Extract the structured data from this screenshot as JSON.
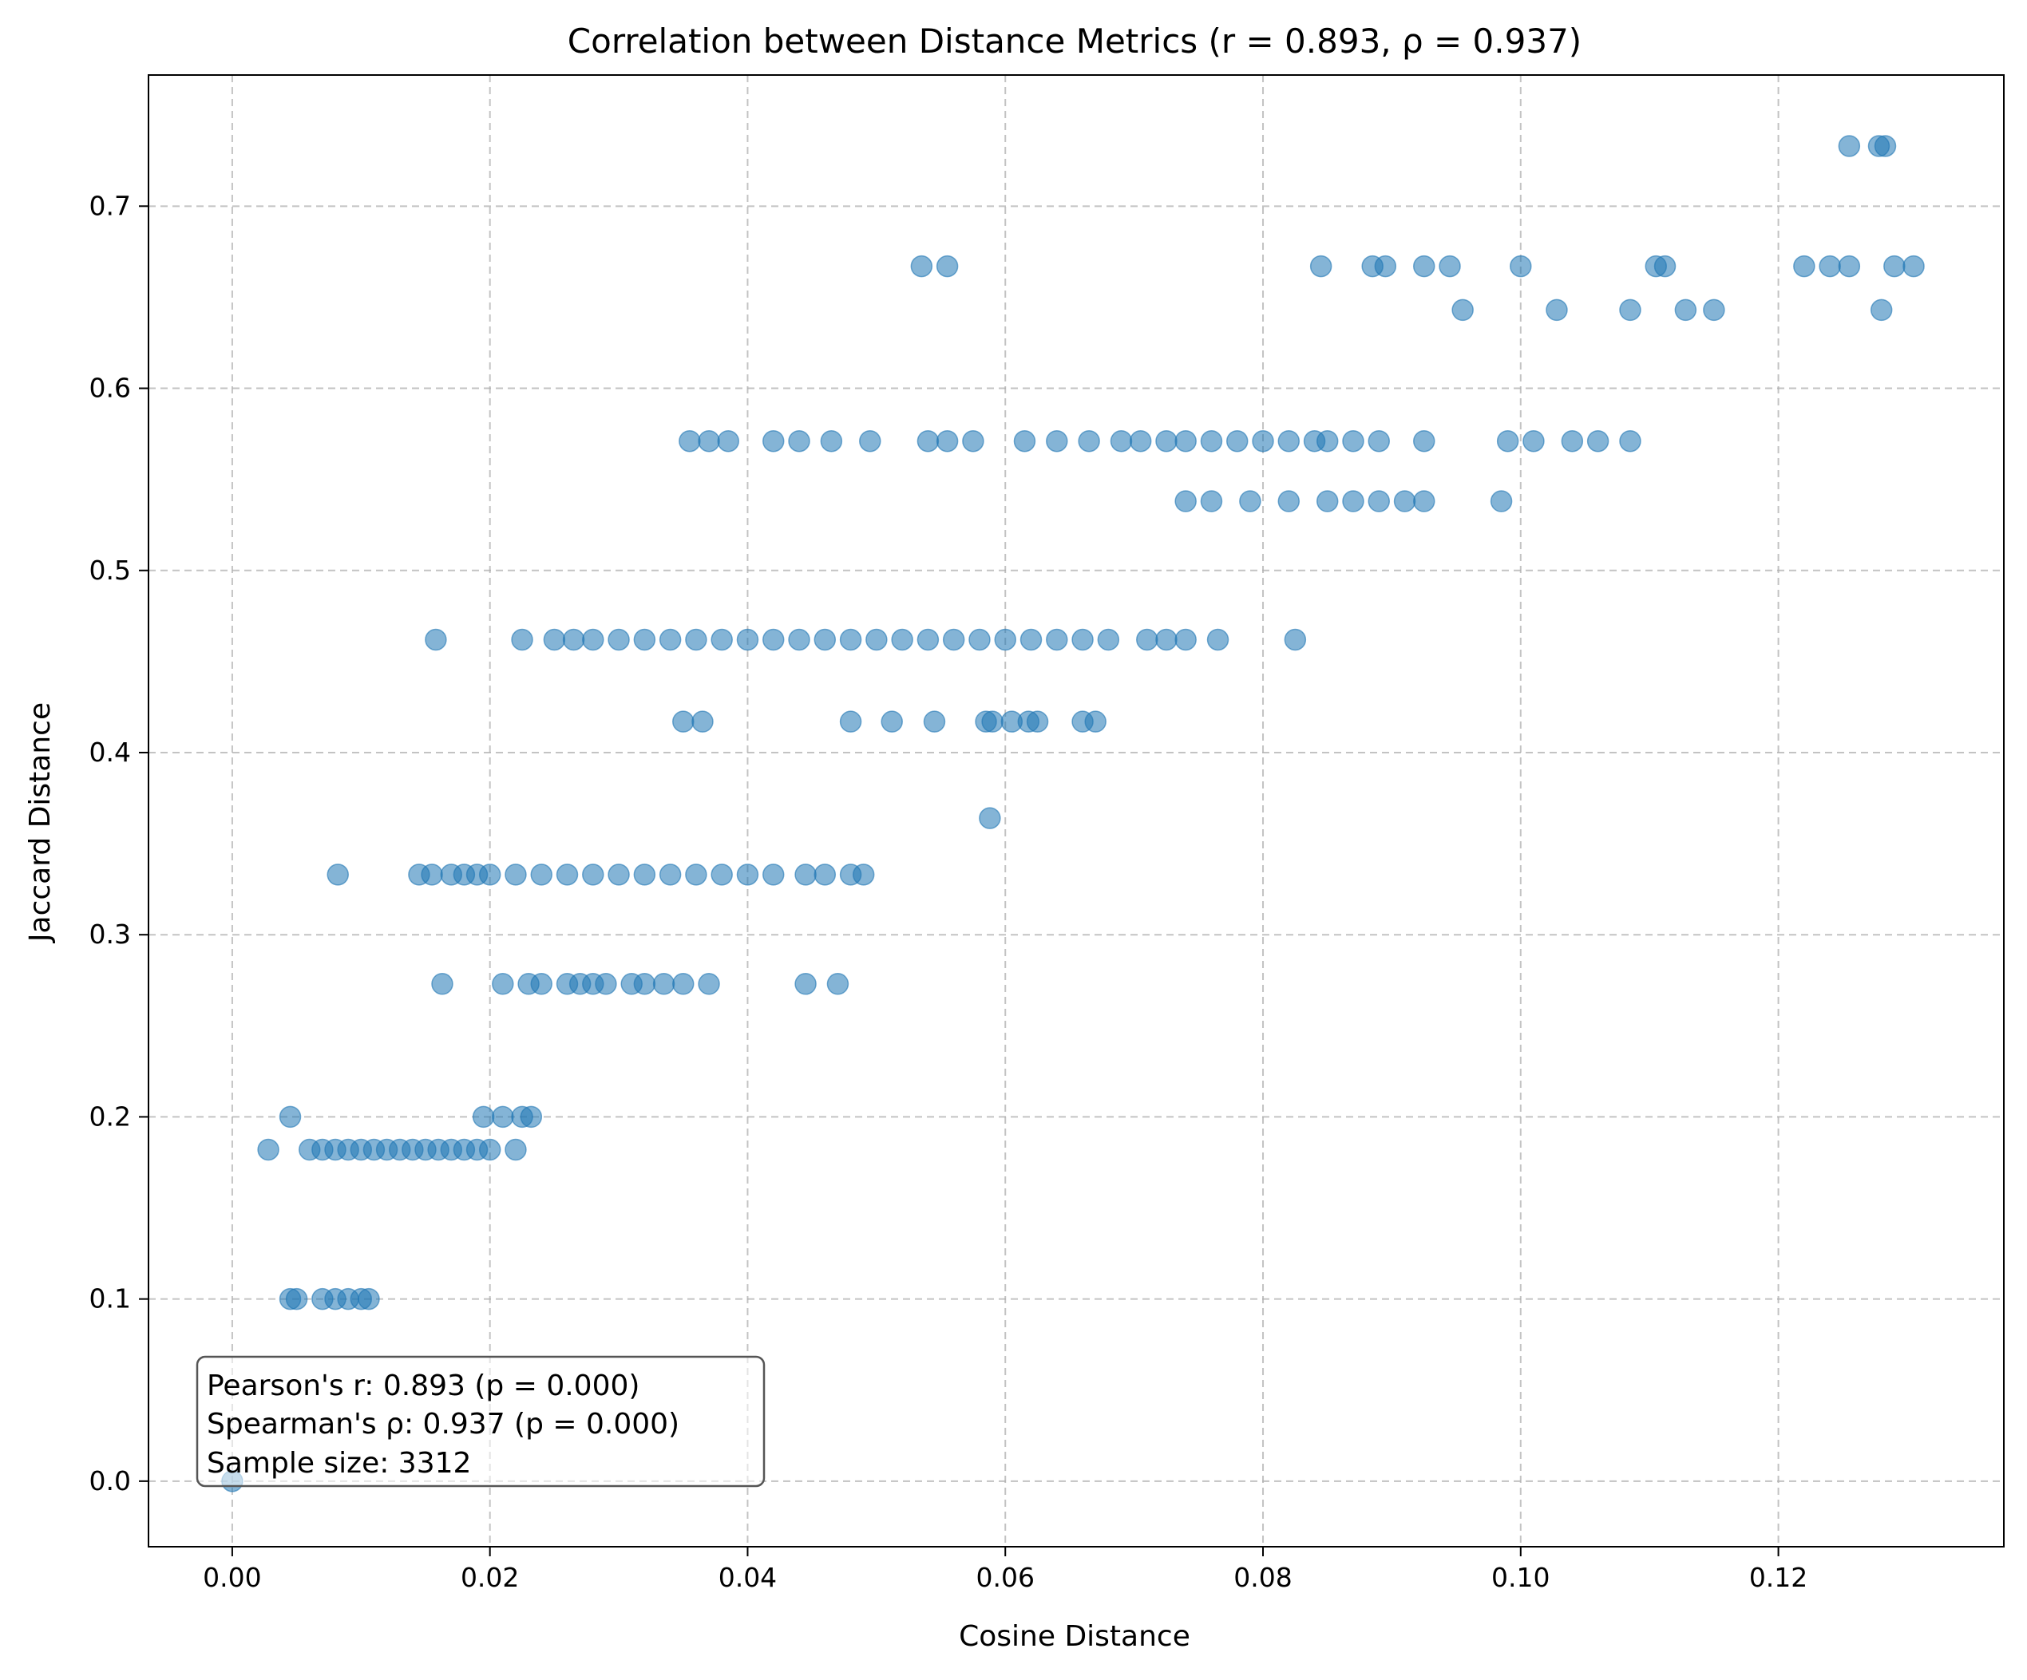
{
  "chart_data": {
    "type": "scatter",
    "title": "Correlation between Distance Metrics (r = 0.893, ρ = 0.937)",
    "xlabel": "Cosine Distance",
    "ylabel": "Jaccard Distance",
    "xlim": [
      -0.0065,
      0.1375
    ],
    "ylim": [
      -0.036,
      0.772
    ],
    "x_ticks": [
      0.0,
      0.02,
      0.04,
      0.06,
      0.08,
      0.1,
      0.12
    ],
    "x_tick_labels": [
      "0.00",
      "0.02",
      "0.04",
      "0.06",
      "0.08",
      "0.10",
      "0.12"
    ],
    "y_ticks": [
      0.0,
      0.1,
      0.2,
      0.3,
      0.4,
      0.5,
      0.6,
      0.7
    ],
    "y_tick_labels": [
      "0.0",
      "0.1",
      "0.2",
      "0.3",
      "0.4",
      "0.5",
      "0.6",
      "0.7"
    ],
    "grid": true,
    "marker_color": "#1f77b4",
    "marker_alpha": 0.55,
    "stats_box": {
      "placement": "bottom-left",
      "lines": [
        "Pearson's r: 0.893 (p = 0.000)",
        "Spearman's ρ: 0.937 (p = 0.000)",
        "Sample size: 3312"
      ]
    },
    "series": [
      {
        "x": [
          0.0,
          0.0045,
          0.005,
          0.007,
          0.008,
          0.009,
          0.01,
          0.0106,
          0.0028,
          0.006,
          0.007,
          0.008,
          0.009,
          0.01,
          0.011,
          0.012,
          0.013,
          0.014,
          0.015,
          0.016,
          0.017,
          0.018,
          0.019,
          0.02,
          0.022,
          0.0045,
          0.0195,
          0.021,
          0.0225,
          0.0232,
          0.0163,
          0.021,
          0.023,
          0.024,
          0.026,
          0.027,
          0.028,
          0.029,
          0.031,
          0.032,
          0.0335,
          0.035,
          0.037,
          0.0445,
          0.047,
          0.0082,
          0.0145,
          0.0155,
          0.017,
          0.018,
          0.019,
          0.02,
          0.022,
          0.024,
          0.026,
          0.028,
          0.03,
          0.032,
          0.034,
          0.036,
          0.038,
          0.04,
          0.042,
          0.0445,
          0.046,
          0.048,
          0.049,
          0.0588,
          0.035,
          0.0365,
          0.048,
          0.0512,
          0.0545,
          0.0585,
          0.059,
          0.0605,
          0.0618,
          0.0625,
          0.066,
          0.067,
          0.0158,
          0.0225,
          0.025,
          0.0265,
          0.028,
          0.03,
          0.032,
          0.034,
          0.036,
          0.038,
          0.04,
          0.042,
          0.044,
          0.046,
          0.048,
          0.05,
          0.052,
          0.054,
          0.056,
          0.058,
          0.06,
          0.062,
          0.064,
          0.066,
          0.068,
          0.071,
          0.0725,
          0.074,
          0.0765,
          0.0825,
          0.074,
          0.076,
          0.079,
          0.082,
          0.085,
          0.087,
          0.089,
          0.091,
          0.0925,
          0.0985,
          0.0355,
          0.037,
          0.0385,
          0.042,
          0.044,
          0.0465,
          0.0495,
          0.054,
          0.0555,
          0.0575,
          0.0615,
          0.064,
          0.0665,
          0.069,
          0.0705,
          0.0725,
          0.074,
          0.076,
          0.078,
          0.08,
          0.082,
          0.084,
          0.085,
          0.087,
          0.089,
          0.0925,
          0.099,
          0.101,
          0.104,
          0.106,
          0.1085,
          0.0535,
          0.0555,
          0.0845,
          0.0885,
          0.0895,
          0.0925,
          0.0945,
          0.1,
          0.1105,
          0.1112,
          0.122,
          0.124,
          0.1255,
          0.129,
          0.1305,
          0.0955,
          0.1028,
          0.1085,
          0.1128,
          0.115,
          0.128,
          0.1255,
          0.1278,
          0.1283
        ],
        "y": [
          0.0,
          0.1,
          0.1,
          0.1,
          0.1,
          0.1,
          0.1,
          0.1,
          0.182,
          0.182,
          0.182,
          0.182,
          0.182,
          0.182,
          0.182,
          0.182,
          0.182,
          0.182,
          0.182,
          0.182,
          0.182,
          0.182,
          0.182,
          0.182,
          0.182,
          0.2,
          0.2,
          0.2,
          0.2,
          0.2,
          0.273,
          0.273,
          0.273,
          0.273,
          0.273,
          0.273,
          0.273,
          0.273,
          0.273,
          0.273,
          0.273,
          0.273,
          0.273,
          0.273,
          0.273,
          0.333,
          0.333,
          0.333,
          0.333,
          0.333,
          0.333,
          0.333,
          0.333,
          0.333,
          0.333,
          0.333,
          0.333,
          0.333,
          0.333,
          0.333,
          0.333,
          0.333,
          0.333,
          0.333,
          0.333,
          0.333,
          0.333,
          0.364,
          0.417,
          0.417,
          0.417,
          0.417,
          0.417,
          0.417,
          0.417,
          0.417,
          0.417,
          0.417,
          0.417,
          0.417,
          0.462,
          0.462,
          0.462,
          0.462,
          0.462,
          0.462,
          0.462,
          0.462,
          0.462,
          0.462,
          0.462,
          0.462,
          0.462,
          0.462,
          0.462,
          0.462,
          0.462,
          0.462,
          0.462,
          0.462,
          0.462,
          0.462,
          0.462,
          0.462,
          0.462,
          0.462,
          0.462,
          0.462,
          0.462,
          0.462,
          0.538,
          0.538,
          0.538,
          0.538,
          0.538,
          0.538,
          0.538,
          0.538,
          0.538,
          0.538,
          0.571,
          0.571,
          0.571,
          0.571,
          0.571,
          0.571,
          0.571,
          0.571,
          0.571,
          0.571,
          0.571,
          0.571,
          0.571,
          0.571,
          0.571,
          0.571,
          0.571,
          0.571,
          0.571,
          0.571,
          0.571,
          0.571,
          0.571,
          0.571,
          0.571,
          0.571,
          0.571,
          0.571,
          0.571,
          0.571,
          0.571,
          0.667,
          0.667,
          0.667,
          0.667,
          0.667,
          0.667,
          0.667,
          0.667,
          0.667,
          0.667,
          0.667,
          0.667,
          0.667,
          0.667,
          0.667,
          0.643,
          0.643,
          0.643,
          0.643,
          0.643,
          0.643,
          0.733,
          0.733,
          0.733
        ]
      }
    ]
  }
}
